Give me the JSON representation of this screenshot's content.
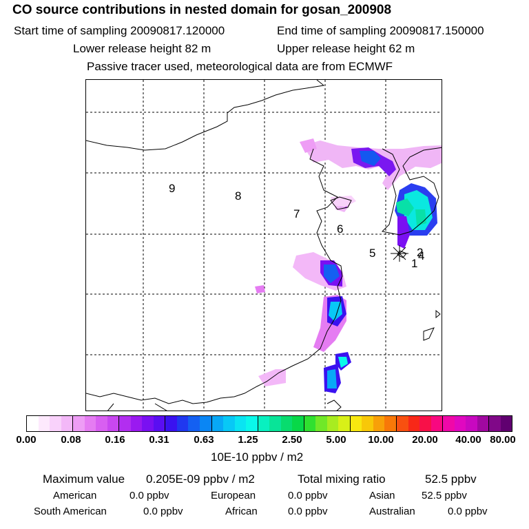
{
  "header": {
    "title": "CO  source contributions in nested domain for gosan_200908",
    "start_time": "Start time of sampling 20090817.120000",
    "end_time": "End time of sampling 20090817.150000",
    "lower_height": "Lower release height   82 m",
    "upper_height": "Upper release height   62 m",
    "note": "Passive tracer used, meteorological data are from ECMWF"
  },
  "map": {
    "regions": [
      "9",
      "8",
      "7",
      "6",
      "5",
      "1",
      "2",
      "4"
    ],
    "receptor_marker": "star"
  },
  "colorscale": {
    "ticks": [
      "0.00",
      "0.08",
      "0.16",
      "0.31",
      "0.63",
      "1.25",
      "2.50",
      "5.00",
      "10.00",
      "20.00",
      "40.00",
      "80.00"
    ],
    "unit": "10E-10 ppbv / m2",
    "colors": [
      "#ffffff",
      "#fde9fd",
      "#f9d2fb",
      "#f3b8f8",
      "#ee9df5",
      "#e57cf2",
      "#d85ff1",
      "#c847f0",
      "#b22ef0",
      "#9a1af0",
      "#7a10f2",
      "#5a0ef2",
      "#3a12f0",
      "#2038f0",
      "#1460f2",
      "#0a86f4",
      "#08a8f6",
      "#08c8f6",
      "#0ae4f2",
      "#0af8ea",
      "#08f0c0",
      "#08e498",
      "#08dc6e",
      "#08d848",
      "#30e030",
      "#70e828",
      "#a8ec20",
      "#d8f018",
      "#f8e810",
      "#f8c808",
      "#f8a008",
      "#f87808",
      "#f85010",
      "#f82818",
      "#f81048",
      "#f80880",
      "#f008a8",
      "#e008c0",
      "#c808c0",
      "#a008a0",
      "#800888",
      "#600070"
    ]
  },
  "footer": {
    "max_label": "Maximum value",
    "max_value": "0.205E-09 ppbv / m2",
    "total_label": "Total mixing ratio",
    "total_value": "52.5 ppbv",
    "sources": [
      {
        "name": "American",
        "value": "0.0 ppbv"
      },
      {
        "name": "European",
        "value": "0.0 ppbv"
      },
      {
        "name": "Asian",
        "value": "52.5 ppbv"
      },
      {
        "name": "South American",
        "value": "0.0 ppbv"
      },
      {
        "name": "African",
        "value": "0.0 ppbv"
      },
      {
        "name": "Australian",
        "value": "0.0 ppbv"
      }
    ]
  }
}
